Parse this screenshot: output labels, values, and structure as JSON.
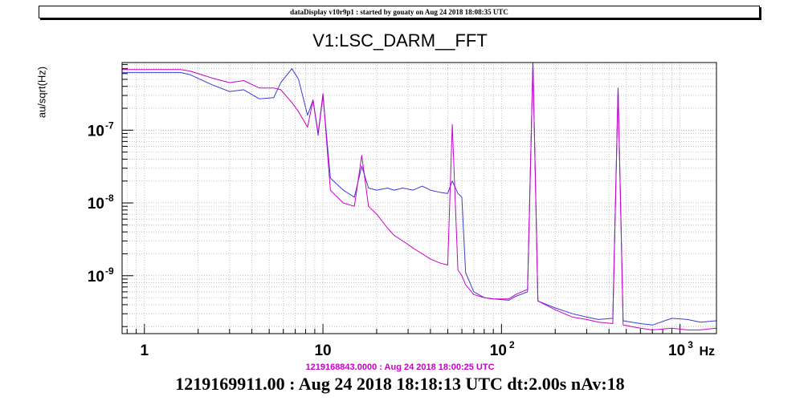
{
  "header": {
    "banner": "dataDisplay v10r9p1 : started by gouaty on Aug 24 2018 18:08:35 UTC"
  },
  "footer": {
    "reference_time": "1219168843.0000 : Aug 24 2018 18:00:25 UTC",
    "measurement": "1219169911.00 : Aug 24 2018 18:18:13 UTC dt:2.00s nAv:18"
  },
  "chart_data": {
    "type": "line",
    "title": "V1:LSC_DARM__FFT",
    "ylabel": "au/sqrt(Hz)",
    "xlabel": "Hz",
    "xscale": "log",
    "yscale": "log",
    "xlim": [
      0.75,
      1600
    ],
    "ylim": [
      1.6e-10,
      8.5e-07
    ],
    "grid": true,
    "x_ticks": [
      {
        "value": 1,
        "label": "1"
      },
      {
        "value": 10,
        "label": "10"
      }
    ],
    "x_tick_exponents": [
      {
        "value": 100,
        "base": "10",
        "exp": "2"
      },
      {
        "value": 1000,
        "base": "10",
        "exp": "3"
      }
    ],
    "y_ticks": [
      {
        "value": 1e-07,
        "base": "10",
        "exp": "-7"
      },
      {
        "value": 1e-08,
        "base": "10",
        "exp": "-8"
      },
      {
        "value": 1e-09,
        "base": "10",
        "exp": "-9"
      }
    ],
    "series": [
      {
        "color": "#3c3cd2",
        "points": [
          [
            0.75,
            6.2e-07
          ],
          [
            1.6,
            6.2e-07
          ],
          [
            1.8,
            5.8e-07
          ],
          [
            2.4,
            4.2e-07
          ],
          [
            3.0,
            3.4e-07
          ],
          [
            3.6,
            3.6e-07
          ],
          [
            4.4,
            2.7e-07
          ],
          [
            5.3,
            2.8e-07
          ],
          [
            5.8,
            4.5e-07
          ],
          [
            6.7,
            7e-07
          ],
          [
            7.3,
            5e-07
          ],
          [
            8.2,
            1.6e-07
          ],
          [
            8.8,
            2.6e-07
          ],
          [
            9.4,
            8.5e-08
          ],
          [
            10,
            3e-07
          ],
          [
            11,
            2.2e-08
          ],
          [
            13,
            1.5e-08
          ],
          [
            15,
            1.2e-08
          ],
          [
            16.5,
            3.2e-08
          ],
          [
            18,
            1.6e-08
          ],
          [
            20,
            1.5e-08
          ],
          [
            23,
            1.6e-08
          ],
          [
            25,
            1.5e-08
          ],
          [
            28,
            1.6e-08
          ],
          [
            32,
            1.5e-08
          ],
          [
            36,
            1.7e-08
          ],
          [
            40,
            1.5e-08
          ],
          [
            45,
            1.4e-08
          ],
          [
            50,
            1.35e-08
          ],
          [
            53,
            2e-08
          ],
          [
            57,
            1.35e-08
          ],
          [
            60,
            1.2e-08
          ],
          [
            63,
            1.1e-09
          ],
          [
            70,
            6e-10
          ],
          [
            80,
            5e-10
          ],
          [
            90,
            4.8e-10
          ],
          [
            110,
            4.6e-10
          ],
          [
            120,
            5.2e-10
          ],
          [
            140,
            6e-10
          ],
          [
            150,
            8.5e-07
          ],
          [
            160,
            4.5e-10
          ],
          [
            200,
            3.6e-10
          ],
          [
            250,
            3e-10
          ],
          [
            300,
            2.7e-10
          ],
          [
            350,
            2.5e-10
          ],
          [
            420,
            2.6e-10
          ],
          [
            450,
            3.8e-07
          ],
          [
            480,
            2.4e-10
          ],
          [
            600,
            2.2e-10
          ],
          [
            700,
            2.1e-10
          ],
          [
            900,
            2.6e-10
          ],
          [
            1100,
            2.5e-10
          ],
          [
            1300,
            2.3e-10
          ],
          [
            1600,
            2.4e-10
          ]
        ]
      },
      {
        "color": "#c800c8",
        "points": [
          [
            0.75,
            6.8e-07
          ],
          [
            1.6,
            6.8e-07
          ],
          [
            1.8,
            6.5e-07
          ],
          [
            2.4,
            5.2e-07
          ],
          [
            3.0,
            4.5e-07
          ],
          [
            3.6,
            4.8e-07
          ],
          [
            4.4,
            3.8e-07
          ],
          [
            5.3,
            3.8e-07
          ],
          [
            5.8,
            3.6e-07
          ],
          [
            6.7,
            2.4e-07
          ],
          [
            7.3,
            1.8e-07
          ],
          [
            8.2,
            1.1e-07
          ],
          [
            8.8,
            2.6e-07
          ],
          [
            9.4,
            9e-08
          ],
          [
            10,
            3.2e-07
          ],
          [
            11,
            1.5e-08
          ],
          [
            13,
            1e-08
          ],
          [
            15,
            9e-09
          ],
          [
            16.5,
            4.5e-08
          ],
          [
            18,
            9e-09
          ],
          [
            20,
            7e-09
          ],
          [
            23,
            4.5e-09
          ],
          [
            25,
            3.6e-09
          ],
          [
            28,
            3e-09
          ],
          [
            32,
            2.4e-09
          ],
          [
            36,
            2e-09
          ],
          [
            40,
            1.7e-09
          ],
          [
            45,
            1.5e-09
          ],
          [
            50,
            1.4e-09
          ],
          [
            53,
            1.2e-07
          ],
          [
            57,
            1.2e-09
          ],
          [
            60,
            1e-09
          ],
          [
            63,
            7.5e-10
          ],
          [
            70,
            5.5e-10
          ],
          [
            80,
            5e-10
          ],
          [
            90,
            4.8e-10
          ],
          [
            110,
            4.8e-10
          ],
          [
            120,
            5.5e-10
          ],
          [
            140,
            6.5e-10
          ],
          [
            150,
            8.5e-07
          ],
          [
            160,
            4.5e-10
          ],
          [
            200,
            3.4e-10
          ],
          [
            250,
            2.7e-10
          ],
          [
            300,
            2.5e-10
          ],
          [
            350,
            2.3e-10
          ],
          [
            420,
            2.2e-10
          ],
          [
            450,
            3.8e-07
          ],
          [
            480,
            2.1e-10
          ],
          [
            600,
            1.9e-10
          ],
          [
            700,
            1.8e-10
          ],
          [
            900,
            1.9e-10
          ],
          [
            1100,
            1.8e-10
          ],
          [
            1300,
            1.8e-10
          ],
          [
            1600,
            1.9e-10
          ]
        ]
      }
    ]
  }
}
